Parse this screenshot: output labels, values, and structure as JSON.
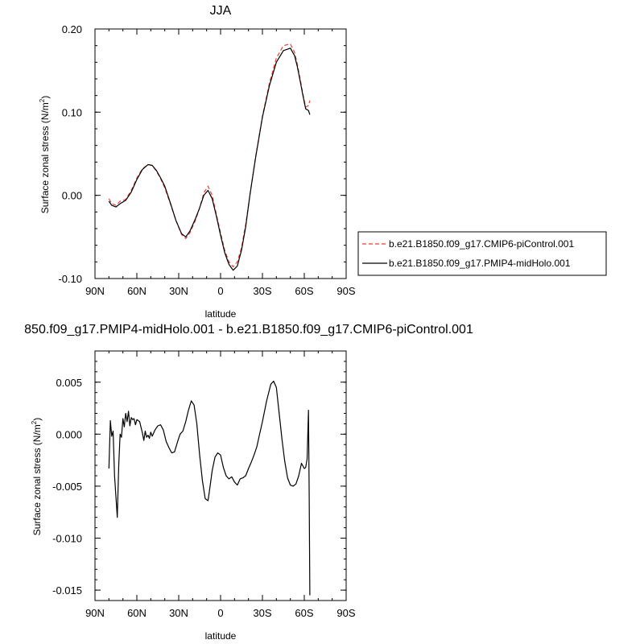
{
  "chart_data": [
    {
      "type": "line",
      "title": "JJA",
      "xlabel": "latitude",
      "ylabel": "Surface zonal stress (N/m",
      "ylabel_sup": "2",
      "ylabel_close": ")",
      "xlim": [
        90,
        -90
      ],
      "ylim": [
        -0.1,
        0.2
      ],
      "x_ticks": [
        90,
        60,
        30,
        0,
        -30,
        -60,
        -90
      ],
      "x_tick_labels": [
        "90N",
        "60N",
        "30N",
        "0",
        "30S",
        "60S",
        "90S"
      ],
      "y_ticks": [
        -0.1,
        0.0,
        0.1,
        0.2
      ],
      "y_tick_labels": [
        "-0.10",
        "0.00",
        "0.10",
        "0.20"
      ],
      "legend_placement": "right",
      "series": [
        {
          "name": "b.e21.B1850.f09_g17.CMIP6-piControl.001",
          "color": "#e8423b",
          "style": "dashed",
          "x": [
            80,
            78,
            75,
            72,
            68,
            64,
            60,
            56,
            52,
            49,
            46,
            43,
            40,
            36,
            32,
            28,
            25,
            22,
            18,
            15,
            12,
            9,
            6,
            3,
            0,
            -3,
            -6,
            -9,
            -12,
            -15,
            -18,
            -21,
            -25,
            -30,
            -35,
            -40,
            -45,
            -50,
            -53,
            -55,
            -57,
            -59,
            -61,
            -63,
            -64
          ],
          "y": [
            -0.004,
            -0.01,
            -0.012,
            -0.007,
            -0.005,
            0.006,
            0.021,
            0.032,
            0.037,
            0.036,
            0.029,
            0.02,
            0.009,
            -0.01,
            -0.03,
            -0.047,
            -0.052,
            -0.045,
            -0.03,
            -0.015,
            0.003,
            0.011,
            0.0,
            -0.023,
            -0.045,
            -0.066,
            -0.08,
            -0.086,
            -0.08,
            -0.063,
            -0.035,
            0.0,
            0.045,
            0.095,
            0.135,
            0.165,
            0.18,
            0.182,
            0.172,
            0.158,
            0.14,
            0.122,
            0.106,
            0.108,
            0.114
          ]
        },
        {
          "name": "b.e21.B1850.f09_g17.PMIP4-midHolo.001",
          "color": "#000000",
          "style": "solid",
          "x": [
            80,
            78,
            75,
            72,
            68,
            64,
            60,
            56,
            52,
            49,
            46,
            43,
            40,
            36,
            32,
            28,
            25,
            22,
            18,
            15,
            12,
            9,
            6,
            3,
            0,
            -3,
            -6,
            -9,
            -12,
            -15,
            -18,
            -21,
            -25,
            -30,
            -35,
            -40,
            -45,
            -50,
            -53,
            -55,
            -57,
            -59,
            -61,
            -63,
            -64
          ],
          "y": [
            -0.007,
            -0.012,
            -0.014,
            -0.01,
            -0.006,
            0.004,
            0.019,
            0.031,
            0.037,
            0.036,
            0.03,
            0.021,
            0.011,
            -0.009,
            -0.03,
            -0.046,
            -0.05,
            -0.043,
            -0.028,
            -0.015,
            0.0,
            0.006,
            -0.004,
            -0.025,
            -0.048,
            -0.069,
            -0.083,
            -0.09,
            -0.085,
            -0.066,
            -0.038,
            0.0,
            0.044,
            0.094,
            0.132,
            0.16,
            0.174,
            0.177,
            0.168,
            0.155,
            0.138,
            0.12,
            0.104,
            0.102,
            0.097
          ]
        }
      ]
    },
    {
      "type": "line",
      "title": "850.f09_g17.PMIP4-midHolo.001 - b.e21.B1850.f09_g17.CMIP6-piControl.001",
      "xlabel": "latitude",
      "ylabel": "Surface zonal stress (N/m",
      "ylabel_sup": "2",
      "ylabel_close": ")",
      "xlim": [
        90,
        -90
      ],
      "ylim": [
        -0.016,
        0.008
      ],
      "x_ticks": [
        90,
        60,
        30,
        0,
        -30,
        -60,
        -90
      ],
      "x_tick_labels": [
        "90N",
        "60N",
        "30N",
        "0",
        "30S",
        "60S",
        "90S"
      ],
      "y_ticks": [
        -0.015,
        -0.01,
        -0.005,
        0.0,
        0.005
      ],
      "y_tick_labels": [
        "-0.015",
        "-0.010",
        "-0.005",
        "0.000",
        "0.005"
      ],
      "series": [
        {
          "name": "",
          "color": "#000000",
          "style": "solid",
          "x": [
            80,
            79,
            78,
            77,
            76,
            74,
            73,
            72,
            71,
            70,
            69,
            68,
            67,
            66,
            65,
            64,
            63,
            62,
            61,
            60,
            58,
            56,
            55,
            54,
            53,
            52,
            51,
            50,
            49,
            47,
            45,
            43,
            41,
            39,
            37,
            35,
            33,
            31,
            29,
            27,
            25,
            23,
            21,
            19,
            17,
            15,
            13,
            11,
            9,
            8,
            6,
            4,
            2,
            0,
            -2,
            -4,
            -6,
            -8,
            -10,
            -12,
            -14,
            -16,
            -18,
            -20,
            -22,
            -24,
            -26,
            -28,
            -30,
            -33,
            -36,
            -38,
            -40,
            -42,
            -44,
            -46,
            -48,
            -50,
            -52,
            -54,
            -56,
            -58,
            -60,
            -61,
            -62,
            -63,
            -63.5,
            -64
          ],
          "y": [
            -0.0033,
            0.0013,
            -0.0002,
            0.0003,
            -0.004,
            -0.008,
            -0.003,
            0.0,
            -0.0003,
            0.0015,
            0.0007,
            0.002,
            0.0012,
            0.0022,
            0.0008,
            0.0016,
            0.0014,
            0.0015,
            0.0009,
            0.0014,
            0.0012,
            0.0001,
            -0.0006,
            0.0003,
            -0.0003,
            -0.0001,
            -0.0004,
            0.0002,
            -0.0002,
            0.0004,
            0.0008,
            0.0009,
            0.0004,
            -0.0007,
            -0.0013,
            -0.0018,
            -0.0017,
            -0.0008,
            0.0,
            0.0003,
            0.0012,
            0.0023,
            0.0032,
            0.0028,
            0.001,
            -0.002,
            -0.0045,
            -0.0062,
            -0.0064,
            -0.0055,
            -0.0035,
            -0.0022,
            -0.0018,
            -0.002,
            -0.0032,
            -0.004,
            -0.0043,
            -0.0041,
            -0.0046,
            -0.0049,
            -0.0043,
            -0.0042,
            -0.004,
            -0.0033,
            -0.0027,
            -0.002,
            -0.0012,
            0.0,
            0.0012,
            0.0032,
            0.0048,
            0.0051,
            0.0045,
            0.002,
            -0.0005,
            -0.0026,
            -0.0042,
            -0.0049,
            -0.005,
            -0.0048,
            -0.004,
            -0.0028,
            -0.0033,
            -0.0032,
            -0.0024,
            0.0023,
            -0.006,
            -0.0155
          ]
        }
      ]
    }
  ]
}
